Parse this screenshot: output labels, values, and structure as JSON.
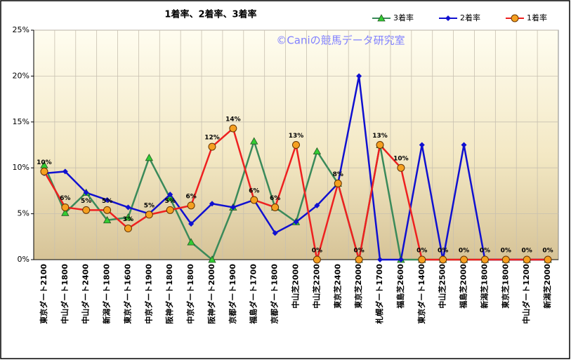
{
  "chart_data": {
    "type": "line",
    "title": "1着率、2着率、3着率",
    "annotations": [
      "©Caniの競馬データ研究室"
    ],
    "categories": [
      "東京ダート2100",
      "中山ダート1800",
      "中山ダート2400",
      "新潟ダート1800",
      "東京ダート1600",
      "中京ダート1900",
      "阪神ダート1800",
      "中京ダート1800",
      "阪神ダート2000",
      "京都ダート1900",
      "福島ダート1700",
      "京都ダート1800",
      "中山芝2000",
      "中山芝2200",
      "東京芝2400",
      "東京芝2000",
      "札幌ダート1700",
      "福島芝2600",
      "東京ダート1400",
      "中山芝2500",
      "福島芝2000",
      "新潟芝1800",
      "東京芝1800",
      "中山ダート1200",
      "新潟芝2000"
    ],
    "series": [
      {
        "name": "3着率",
        "color": "#3a8a5a",
        "marker": "triangle",
        "marker_color": "#33cc33",
        "values": [
          10.3,
          5.1,
          7.3,
          4.3,
          4.6,
          11.1,
          6.7,
          1.9,
          0,
          5.7,
          12.9,
          5.7,
          4.1,
          11.8,
          8.3,
          0,
          12.5,
          0,
          0,
          0,
          0,
          0,
          0,
          0,
          0
        ]
      },
      {
        "name": "2着率",
        "color": "#1010d0",
        "marker": "diamond",
        "marker_color": "#1010d0",
        "values": [
          9.4,
          9.6,
          7.3,
          6.5,
          5.7,
          5.0,
          7.1,
          3.9,
          6.1,
          5.7,
          6.5,
          2.9,
          4.1,
          5.9,
          8.3,
          20.0,
          0,
          0,
          12.5,
          0,
          12.5,
          0,
          0,
          0,
          0
        ]
      },
      {
        "name": "1着率",
        "color": "#ee2020",
        "marker": "circle",
        "marker_color": "#f5a020",
        "values": [
          9.6,
          5.7,
          5.4,
          5.4,
          3.4,
          4.9,
          5.4,
          5.9,
          12.3,
          14.3,
          6.5,
          5.7,
          12.5,
          0,
          8.3,
          0,
          12.5,
          10.0,
          0,
          0,
          0,
          0,
          0,
          0,
          0
        ],
        "value_labels": [
          "10%",
          "6%",
          "5%",
          "5%",
          "3%",
          "5%",
          "5%",
          "6%",
          "12%",
          "14%",
          "6%",
          "6%",
          "13%",
          "0%",
          "8%",
          "0%",
          "13%",
          "10%",
          "0%",
          "0%",
          "0%",
          "0%",
          "0%",
          "0%",
          "0%"
        ]
      }
    ],
    "ylim": [
      0,
      25
    ],
    "yticks": [
      {
        "value": 0,
        "label": "0%"
      },
      {
        "value": 5,
        "label": "5%"
      },
      {
        "value": 10,
        "label": "10%"
      },
      {
        "value": 15,
        "label": "15%"
      },
      {
        "value": 20,
        "label": "20%"
      },
      {
        "value": 25,
        "label": "25%"
      }
    ],
    "grid": true,
    "legend": "top"
  }
}
